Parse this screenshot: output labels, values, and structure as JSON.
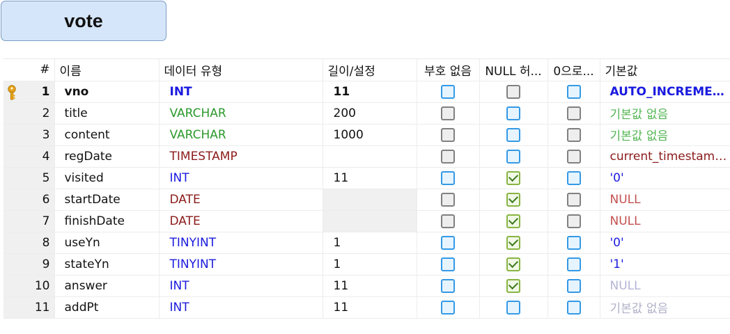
{
  "table_name": "vote",
  "colors": {
    "type_int": "#1a1adf",
    "type_varchar": "#2c9a2c",
    "type_date": "#8b1a1a",
    "def_auto": "#1a1adf",
    "def_none": "#52b552",
    "def_none_faded": "#b0b0c8",
    "def_str": "#1a1adf",
    "def_null": "#c45050",
    "def_null_faded": "#b4b4d6",
    "def_expr": "#8b1a1a"
  },
  "headers": {
    "num": "#",
    "name": "이름",
    "type": "데이터 유형",
    "length": "길이/설정",
    "unsigned": "부호 없음",
    "allow_null": "NULL 허...",
    "zerofill": "0으로...",
    "default": "기본값"
  },
  "rows": [
    {
      "num": "1",
      "name": "vno",
      "type": "INT",
      "type_color": "type_int",
      "length": "11",
      "length_disabled": false,
      "unsigned": "on",
      "allow_null": "off",
      "zerofill": "on",
      "default": "AUTO_INCREMENT",
      "default_color": "def_auto",
      "primary_key": true,
      "key_icon": "primary-key-icon"
    },
    {
      "num": "2",
      "name": "title",
      "type": "VARCHAR",
      "type_color": "type_varchar",
      "length": "200",
      "length_disabled": false,
      "unsigned": "off",
      "allow_null": "on",
      "zerofill": "off",
      "default": "기본값 없음",
      "default_color": "def_none"
    },
    {
      "num": "3",
      "name": "content",
      "type": "VARCHAR",
      "type_color": "type_varchar",
      "length": "1000",
      "length_disabled": false,
      "unsigned": "off",
      "allow_null": "on",
      "zerofill": "off",
      "default": "기본값 없음",
      "default_color": "def_none"
    },
    {
      "num": "4",
      "name": "regDate",
      "type": "TIMESTAMP",
      "type_color": "type_date",
      "length": "",
      "length_disabled": false,
      "unsigned": "off",
      "allow_null": "on",
      "zerofill": "off",
      "default": "current_timestamp()",
      "default_color": "def_expr"
    },
    {
      "num": "5",
      "name": "visited",
      "type": "INT",
      "type_color": "type_int",
      "length": "11",
      "length_disabled": false,
      "unsigned": "on",
      "allow_null": "checked",
      "zerofill": "on",
      "default": "'0'",
      "default_color": "def_str"
    },
    {
      "num": "6",
      "name": "startDate",
      "type": "DATE",
      "type_color": "type_date",
      "length": "",
      "length_disabled": true,
      "unsigned": "off",
      "allow_null": "checked",
      "zerofill": "off",
      "default": "NULL",
      "default_color": "def_null"
    },
    {
      "num": "7",
      "name": "finishDate",
      "type": "DATE",
      "type_color": "type_date",
      "length": "",
      "length_disabled": true,
      "unsigned": "off",
      "allow_null": "checked",
      "zerofill": "off",
      "default": "NULL",
      "default_color": "def_null"
    },
    {
      "num": "8",
      "name": "useYn",
      "type": "TINYINT",
      "type_color": "type_int",
      "length": "1",
      "length_disabled": false,
      "unsigned": "on",
      "allow_null": "checked",
      "zerofill": "on",
      "default": "'0'",
      "default_color": "def_str"
    },
    {
      "num": "9",
      "name": "stateYn",
      "type": "TINYINT",
      "type_color": "type_int",
      "length": "1",
      "length_disabled": false,
      "unsigned": "on",
      "allow_null": "checked",
      "zerofill": "on",
      "default": "'1'",
      "default_color": "def_str"
    },
    {
      "num": "10",
      "name": "answer",
      "type": "INT",
      "type_color": "type_int",
      "length": "11",
      "length_disabled": false,
      "unsigned": "on",
      "allow_null": "checked",
      "zerofill": "on",
      "default": "NULL",
      "default_color": "def_null_faded"
    },
    {
      "num": "11",
      "name": "addPt",
      "type": "INT",
      "type_color": "type_int",
      "length": "11",
      "length_disabled": false,
      "unsigned": "on",
      "allow_null": "on",
      "zerofill": "on",
      "default": "기본값 없음",
      "default_color": "def_none_faded"
    }
  ]
}
